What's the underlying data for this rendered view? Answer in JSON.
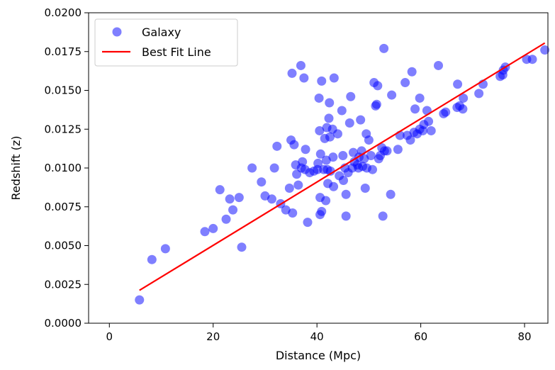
{
  "chart_data": {
    "type": "scatter",
    "title": "",
    "xlabel": "Distance (Mpc)",
    "ylabel": "Redshift (z)",
    "xlim": [
      -4,
      84.5
    ],
    "ylim": [
      0,
      0.02
    ],
    "x_ticks": [
      0,
      20,
      40,
      60,
      80
    ],
    "y_ticks": [
      0.0,
      0.0025,
      0.005,
      0.0075,
      0.01,
      0.0125,
      0.015,
      0.0175,
      0.02
    ],
    "x_tick_labels": [
      "0",
      "20",
      "40",
      "60",
      "80"
    ],
    "y_tick_labels": [
      "0.0000",
      "0.0025",
      "0.0050",
      "0.0075",
      "0.0100",
      "0.0125",
      "0.0150",
      "0.0175",
      "0.0200"
    ],
    "grid": false,
    "legend": {
      "placement": "upper-left",
      "entries": [
        {
          "label": "Galaxy",
          "kind": "marker",
          "color": "#0000ff"
        },
        {
          "label": "Best Fit Line",
          "kind": "line",
          "color": "#ff0000"
        }
      ]
    },
    "series": [
      {
        "name": "Galaxy",
        "kind": "scatter",
        "color": "#0000ff",
        "alpha": 0.5,
        "points": [
          [
            5.8,
            0.0015
          ],
          [
            8.2,
            0.0041
          ],
          [
            10.8,
            0.0048
          ],
          [
            18.4,
            0.0059
          ],
          [
            20.0,
            0.0061
          ],
          [
            21.3,
            0.0086
          ],
          [
            22.5,
            0.0067
          ],
          [
            23.2,
            0.008
          ],
          [
            23.8,
            0.0073
          ],
          [
            25.0,
            0.0081
          ],
          [
            25.5,
            0.0049
          ],
          [
            27.5,
            0.01
          ],
          [
            29.3,
            0.0091
          ],
          [
            30.0,
            0.0082
          ],
          [
            31.3,
            0.008
          ],
          [
            31.8,
            0.01
          ],
          [
            32.3,
            0.0114
          ],
          [
            33.0,
            0.0077
          ],
          [
            34.0,
            0.0073
          ],
          [
            34.7,
            0.0087
          ],
          [
            35.0,
            0.0118
          ],
          [
            35.2,
            0.0161
          ],
          [
            35.3,
            0.0071
          ],
          [
            35.6,
            0.0115
          ],
          [
            35.9,
            0.0102
          ],
          [
            36.1,
            0.0096
          ],
          [
            36.4,
            0.0089
          ],
          [
            36.9,
            0.0166
          ],
          [
            37.0,
            0.01
          ],
          [
            37.2,
            0.0104
          ],
          [
            37.5,
            0.0158
          ],
          [
            37.7,
            0.0099
          ],
          [
            37.8,
            0.0112
          ],
          [
            38.2,
            0.0065
          ],
          [
            38.6,
            0.0097
          ],
          [
            39.4,
            0.0098
          ],
          [
            40.1,
            0.0099
          ],
          [
            40.2,
            0.0103
          ],
          [
            40.4,
            0.0145
          ],
          [
            40.5,
            0.0124
          ],
          [
            40.6,
            0.007
          ],
          [
            40.6,
            0.0081
          ],
          [
            40.7,
            0.0109
          ],
          [
            40.9,
            0.0072
          ],
          [
            40.9,
            0.0156
          ],
          [
            41.3,
            0.0099
          ],
          [
            41.5,
            0.0119
          ],
          [
            41.7,
            0.0079
          ],
          [
            41.8,
            0.0105
          ],
          [
            41.9,
            0.0126
          ],
          [
            42.0,
            0.0099
          ],
          [
            42.1,
            0.009
          ],
          [
            42.3,
            0.0132
          ],
          [
            42.4,
            0.0142
          ],
          [
            42.5,
            0.012
          ],
          [
            42.6,
            0.0098
          ],
          [
            43.0,
            0.0125
          ],
          [
            43.1,
            0.0107
          ],
          [
            43.2,
            0.0088
          ],
          [
            43.3,
            0.0158
          ],
          [
            44.0,
            0.0122
          ],
          [
            44.3,
            0.0095
          ],
          [
            44.8,
            0.0137
          ],
          [
            45.0,
            0.0108
          ],
          [
            45.1,
            0.0092
          ],
          [
            45.4,
            0.01
          ],
          [
            45.6,
            0.0083
          ],
          [
            45.6,
            0.0069
          ],
          [
            46.0,
            0.0097
          ],
          [
            46.3,
            0.0129
          ],
          [
            46.5,
            0.0146
          ],
          [
            46.8,
            0.01
          ],
          [
            47.0,
            0.011
          ],
          [
            47.2,
            0.0104
          ],
          [
            47.8,
            0.0102
          ],
          [
            48.0,
            0.01
          ],
          [
            48.1,
            0.0107
          ],
          [
            48.4,
            0.0131
          ],
          [
            48.6,
            0.0111
          ],
          [
            48.8,
            0.0101
          ],
          [
            49.1,
            0.0106
          ],
          [
            49.3,
            0.0087
          ],
          [
            49.5,
            0.0122
          ],
          [
            49.6,
            0.01
          ],
          [
            50.0,
            0.0118
          ],
          [
            50.4,
            0.0108
          ],
          [
            50.7,
            0.0099
          ],
          [
            51.0,
            0.0155
          ],
          [
            51.3,
            0.014
          ],
          [
            51.5,
            0.0141
          ],
          [
            51.7,
            0.0153
          ],
          [
            51.9,
            0.0106
          ],
          [
            52.2,
            0.0108
          ],
          [
            52.5,
            0.0113
          ],
          [
            52.7,
            0.0069
          ],
          [
            52.9,
            0.0177
          ],
          [
            53.0,
            0.0111
          ],
          [
            53.5,
            0.0111
          ],
          [
            54.2,
            0.0083
          ],
          [
            54.4,
            0.0147
          ],
          [
            55.6,
            0.0112
          ],
          [
            56.0,
            0.0121
          ],
          [
            57.0,
            0.0155
          ],
          [
            57.4,
            0.0121
          ],
          [
            58.0,
            0.0118
          ],
          [
            58.3,
            0.0162
          ],
          [
            58.7,
            0.0123
          ],
          [
            58.9,
            0.0138
          ],
          [
            59.3,
            0.0122
          ],
          [
            59.8,
            0.0125
          ],
          [
            59.8,
            0.0145
          ],
          [
            60.4,
            0.0124
          ],
          [
            60.6,
            0.0128
          ],
          [
            61.2,
            0.0137
          ],
          [
            61.5,
            0.013
          ],
          [
            62.0,
            0.0124
          ],
          [
            63.4,
            0.0166
          ],
          [
            64.4,
            0.0135
          ],
          [
            64.8,
            0.0136
          ],
          [
            67.0,
            0.0139
          ],
          [
            67.1,
            0.0154
          ],
          [
            67.5,
            0.014
          ],
          [
            68.1,
            0.0138
          ],
          [
            68.2,
            0.0145
          ],
          [
            71.2,
            0.0148
          ],
          [
            72.0,
            0.0154
          ],
          [
            75.3,
            0.0159
          ],
          [
            75.8,
            0.016
          ],
          [
            75.9,
            0.0163
          ],
          [
            76.3,
            0.0165
          ],
          [
            80.4,
            0.017
          ],
          [
            81.5,
            0.017
          ],
          [
            83.9,
            0.0176
          ]
        ]
      },
      {
        "name": "Best Fit Line",
        "kind": "line",
        "color": "#ff0000",
        "x": [
          5.8,
          83.9
        ],
        "y": [
          0.00212,
          0.01805
        ]
      }
    ]
  }
}
